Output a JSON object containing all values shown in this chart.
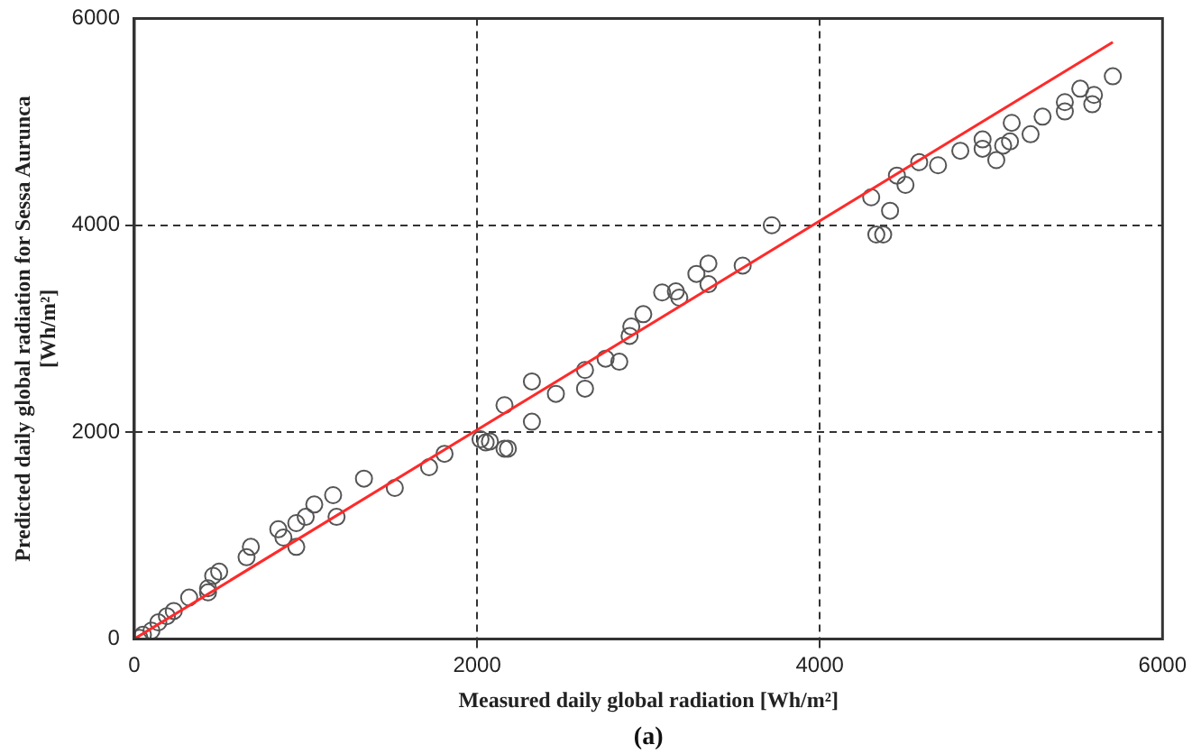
{
  "chart_data": {
    "type": "scatter",
    "xlabel": "Measured daily global radiation [Wh/m²]",
    "ylabel": "Predicted daily global radiation for Sessa Aurunca\n[Wh/m²]",
    "annotations": [
      "(a)"
    ],
    "xlim": [
      0,
      6000
    ],
    "ylim": [
      0,
      6000
    ],
    "xticks": [
      0,
      2000,
      4000,
      6000
    ],
    "yticks": [
      0,
      2000,
      4000,
      6000
    ],
    "grid": true,
    "legend": false,
    "series": [
      {
        "marker": "circle",
        "color": "#555555",
        "x": [
          30,
          50,
          100,
          140,
          190,
          230,
          320,
          430,
          430,
          460,
          495,
          655,
          680,
          840,
          870,
          945,
          945,
          1000,
          1050,
          1160,
          1180,
          1340,
          1520,
          1720,
          1810,
          2020,
          2050,
          2075,
          2160,
          2160,
          2180,
          2320,
          2320,
          2460,
          2630,
          2630,
          2750,
          2830,
          2890,
          2900,
          2970,
          3080,
          3160,
          3180,
          3280,
          3350,
          3350,
          3550,
          3720,
          4300,
          4330,
          4370,
          4410,
          4450,
          4500,
          4580,
          4690,
          4820,
          4950,
          4950,
          5030,
          5070,
          5110,
          5120,
          5230,
          5300,
          5430,
          5430,
          5520,
          5590,
          5600,
          5710
        ],
        "values": [
          10,
          40,
          80,
          160,
          220,
          270,
          400,
          450,
          490,
          610,
          650,
          790,
          890,
          1060,
          980,
          890,
          1120,
          1180,
          1300,
          1390,
          1180,
          1550,
          1460,
          1660,
          1790,
          1930,
          1900,
          1910,
          1840,
          2260,
          1840,
          2100,
          2490,
          2370,
          2420,
          2600,
          2710,
          2680,
          2930,
          3020,
          3140,
          3350,
          3360,
          3300,
          3530,
          3630,
          3430,
          3610,
          4000,
          4270,
          3910,
          3910,
          4140,
          4480,
          4390,
          4610,
          4580,
          4720,
          4830,
          4740,
          4630,
          4770,
          4810,
          4990,
          4880,
          5050,
          5100,
          5190,
          5320,
          5170,
          5260,
          5440
        ]
      },
      {
        "type": "line",
        "marker": "none",
        "color": "#ff2a2a",
        "x": [
          0,
          5710
        ],
        "values": [
          0,
          5770
        ]
      }
    ]
  }
}
